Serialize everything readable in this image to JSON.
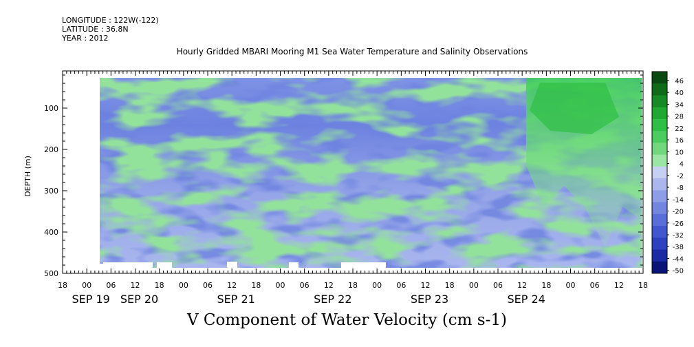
{
  "header": {
    "longitude": "LONGITUDE : 122W(-122)",
    "latitude": "LATITUDE : 36.8N",
    "year": "YEAR : 2012"
  },
  "chart_data": {
    "type": "heatmap",
    "title": "Hourly Gridded MBARI Mooring M1 Sea Water Temperature and Salinity Observations",
    "xlabel": "V Component of Water Velocity (cm s-1)",
    "ylabel": "DEPTH (m)",
    "ylim": [
      500,
      10
    ],
    "y_ticks": [
      100,
      200,
      300,
      400,
      500
    ],
    "x_hour_ticks": [
      "18",
      "00",
      "06",
      "12",
      "18",
      "00",
      "06",
      "12",
      "18",
      "00",
      "06",
      "12",
      "18",
      "00",
      "06",
      "12",
      "18",
      "00",
      "06",
      "12",
      "18",
      "00",
      "06",
      "12",
      "18"
    ],
    "x_date_labels": [
      {
        "text": "SEP 19",
        "hour_index": 1
      },
      {
        "text": "SEP 20",
        "hour_index": 3
      },
      {
        "text": "SEP 21",
        "hour_index": 7
      },
      {
        "text": "SEP 22",
        "hour_index": 11
      },
      {
        "text": "SEP 23",
        "hour_index": 15
      },
      {
        "text": "SEP 24",
        "hour_index": 19
      }
    ],
    "colorbar": {
      "labels": [
        "46",
        "40",
        "34",
        "28",
        "22",
        "16",
        "10",
        "4",
        "-2",
        "-8",
        "-14",
        "-20",
        "-26",
        "-32",
        "-38",
        "-44",
        "-50"
      ],
      "colors": [
        "#0a4a12",
        "#0f6b1a",
        "#168a24",
        "#1fa832",
        "#2fbf45",
        "#4ccc5e",
        "#72d87f",
        "#9ce6a5",
        "#c6d0f2",
        "#aab6ec",
        "#8e9ee6",
        "#7386df",
        "#5a6ed8",
        "#4257cf",
        "#2c40c0",
        "#1a2aa5",
        "#0a1478"
      ]
    },
    "grid": false,
    "legend": "colorbar-right"
  }
}
